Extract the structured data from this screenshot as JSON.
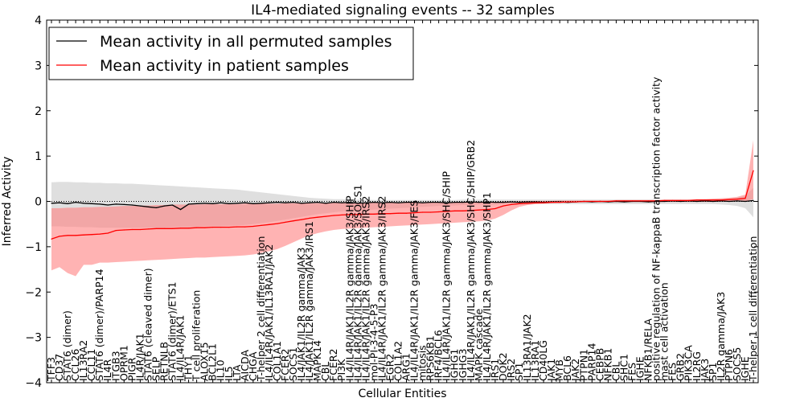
{
  "chart_data": {
    "type": "line",
    "title": "IL4-mediated signaling events -- 32 samples",
    "xlabel": "Cellular Entities",
    "ylabel": "Inferred Activity",
    "ylim": [
      -4,
      4
    ],
    "yticks": [
      -4,
      -3,
      -2,
      -1,
      0,
      1,
      2,
      3,
      4
    ],
    "grid": false,
    "legend_position": "top-left",
    "categories": [
      "TFF3",
      "CD37",
      "STAT6 (dimer)",
      "CCL26",
      "IL13RA2",
      "CCL11",
      "STAT6 (dimer)/PARP14",
      "IL4R",
      "ITGB3",
      "OPRM1",
      "PIGR",
      "IL4R/JAK1",
      "STAT6 (cleaved dimer)",
      "SELP",
      "RETNLB",
      "STAT6 (dimer)/ETS1",
      "IL4/IL4R/JAK1",
      "THY1",
      "T cell proliferation",
      "ALOX15",
      "BCL2L1",
      "IL10",
      "IL5",
      "LTA",
      "AICDA",
      "CHGA",
      "T-helper 2 cell differentiation",
      "IL4/IL4R/JAK1/IL13RA1/JAK2",
      "COL1A1",
      "FCER2",
      "SOCS1",
      "IL4/JAK1/IL2R gamma/JAK3",
      "IL4/JAK1/IL2R gamma/JAK3/IRS1",
      "MAPK14",
      "CBL",
      "FCER2",
      "PI3K",
      "IL4/IL4R/JAK1/IL2R gamma/JAK3/SHIP",
      "IL4/IL4R/JAK1/IL2R gamma/JAK3/SOCS1",
      "IL4/IL4R/JAK1/IL2R gamma/JAK3/IRS2",
      "mol-PI-3-4-5-P3",
      "IL4/IL4R/JAK1/IL2R gamma/JAK3/IRS2",
      "EGR2",
      "COL1A2",
      "ARG1",
      "IL4/IL4R/JAK1/IL2R gamma/JAK3/FES",
      "mitosis",
      "RPS6KB1",
      "IRF4/BCL6",
      "IL4/IL4R/JAK1/IL2R gamma/JAK3/SHC/SHIP",
      "IGHG1",
      "IGHG3",
      "IL4/IL4R/JAK1/IL2R gamma/JAK3/SHC/SHIP/GRB2",
      "MAPK cascade",
      "IL4/IL4R/JAK1/IL2R gamma/JAK3/SHP1",
      "IRS1",
      "DOK2",
      "IRS2",
      "SP1",
      "IL13RA1/JAK2",
      "IL13RA1",
      "CD40LG",
      "JAK1",
      "MYB",
      "BCL6",
      "JAK2",
      "PTPN1",
      "PARP14",
      "CEBPB",
      "NFKB1",
      "CBL",
      "SHC1",
      "FES",
      "IGHE",
      "NFKB1/RELA",
      "positive regulation of NF-kappaB transcription factor activity",
      "mast cell activation",
      "FES",
      "GRB2",
      "PIK3CA",
      "IL2RG",
      "JAK3",
      "SP1",
      "IL2R gamma/JAK3",
      "PTPN6",
      "SOCS5",
      "IGHE",
      "T-helper 1 cell differentiation"
    ],
    "series": [
      {
        "name": "Mean activity in all permuted samples",
        "color": "#000000",
        "values": [
          -0.04,
          -0.03,
          -0.05,
          -0.02,
          -0.04,
          -0.05,
          -0.06,
          -0.08,
          -0.06,
          -0.07,
          -0.08,
          -0.1,
          -0.12,
          -0.14,
          -0.1,
          -0.08,
          -0.18,
          -0.06,
          -0.05,
          -0.04,
          -0.05,
          -0.03,
          -0.05,
          -0.04,
          -0.03,
          -0.05,
          -0.04,
          -0.03,
          -0.02,
          -0.03,
          -0.02,
          -0.04,
          -0.03,
          -0.02,
          -0.04,
          -0.02,
          -0.03,
          -0.02,
          -0.04,
          -0.03,
          -0.02,
          -0.03,
          -0.02,
          -0.03,
          -0.02,
          -0.02,
          -0.03,
          -0.02,
          -0.02,
          -0.03,
          -0.02,
          -0.02,
          -0.01,
          -0.02,
          -0.01,
          -0.02,
          -0.02,
          -0.01,
          -0.02,
          -0.01,
          -0.01,
          -0.02,
          -0.01,
          -0.01,
          -0.02,
          -0.01,
          0,
          -0.01,
          0,
          -0.01,
          0,
          -0.01,
          0,
          0,
          -0.01,
          0,
          0,
          0.01,
          0,
          0.01,
          0,
          0.01,
          0,
          0.01,
          0,
          0.01,
          0,
          0.02
        ]
      },
      {
        "name": "Mean activity in patient samples",
        "color": "#ff0000",
        "values": [
          -0.83,
          -0.77,
          -0.75,
          -0.75,
          -0.74,
          -0.73,
          -0.72,
          -0.7,
          -0.64,
          -0.63,
          -0.62,
          -0.62,
          -0.61,
          -0.6,
          -0.6,
          -0.6,
          -0.59,
          -0.59,
          -0.58,
          -0.58,
          -0.57,
          -0.57,
          -0.57,
          -0.56,
          -0.56,
          -0.55,
          -0.53,
          -0.51,
          -0.49,
          -0.46,
          -0.43,
          -0.4,
          -0.37,
          -0.35,
          -0.33,
          -0.31,
          -0.3,
          -0.29,
          -0.29,
          -0.28,
          -0.28,
          -0.27,
          -0.27,
          -0.26,
          -0.26,
          -0.25,
          -0.24,
          -0.24,
          -0.23,
          -0.22,
          -0.21,
          -0.21,
          -0.2,
          -0.19,
          -0.18,
          -0.16,
          -0.1,
          -0.07,
          -0.05,
          -0.04,
          -0.03,
          -0.03,
          -0.02,
          -0.02,
          -0.01,
          -0.01,
          0,
          0,
          0,
          0,
          0.01,
          0.01,
          0.01,
          0.01,
          0.01,
          0.01,
          0.02,
          0.02,
          0.02,
          0.02,
          0.03,
          0.03,
          0.03,
          0.03,
          0.04,
          0.05,
          0.07,
          0.68
        ]
      }
    ],
    "bands": [
      {
        "series": "Mean activity in all permuted samples",
        "color": "#b0b0b0",
        "lower": [
          -0.55,
          -0.55,
          -0.56,
          -0.56,
          -0.57,
          -0.57,
          -0.58,
          -0.58,
          -0.58,
          -0.58,
          -0.58,
          -0.58,
          -0.58,
          -0.58,
          -0.58,
          -0.57,
          -0.57,
          -0.57,
          -0.56,
          -0.55,
          -0.55,
          -0.55,
          -0.54,
          -0.53,
          -0.52,
          -0.5,
          -0.48,
          -0.46,
          -0.43,
          -0.4,
          -0.37,
          -0.34,
          -0.31,
          -0.28,
          -0.26,
          -0.24,
          -0.22,
          -0.21,
          -0.2,
          -0.19,
          -0.18,
          -0.17,
          -0.16,
          -0.15,
          -0.14,
          -0.13,
          -0.12,
          -0.11,
          -0.1,
          -0.09,
          -0.09,
          -0.08,
          -0.08,
          -0.07,
          -0.07,
          -0.07,
          -0.06,
          -0.06,
          -0.06,
          -0.06,
          -0.06,
          -0.06,
          -0.06,
          -0.06,
          -0.06,
          -0.06,
          -0.06,
          -0.06,
          -0.06,
          -0.06,
          -0.06,
          -0.06,
          -0.06,
          -0.06,
          -0.06,
          -0.06,
          -0.06,
          -0.06,
          -0.06,
          -0.06,
          -0.06,
          -0.06,
          -0.06,
          -0.07,
          -0.08,
          -0.1,
          -0.15,
          -0.35
        ],
        "upper": [
          0.42,
          0.43,
          0.43,
          0.42,
          0.42,
          0.41,
          0.41,
          0.4,
          0.4,
          0.39,
          0.39,
          0.38,
          0.37,
          0.36,
          0.35,
          0.34,
          0.33,
          0.32,
          0.31,
          0.3,
          0.29,
          0.28,
          0.27,
          0.26,
          0.24,
          0.22,
          0.2,
          0.18,
          0.16,
          0.14,
          0.12,
          0.1,
          0.08,
          0.07,
          0.06,
          0.05,
          0.05,
          0.04,
          0.04,
          0.04,
          0.03,
          0.03,
          0.03,
          0.03,
          0.03,
          0.03,
          0.03,
          0.03,
          0.03,
          0.03,
          0.03,
          0.04,
          0.04,
          0.04,
          0.04,
          0.04,
          0.04,
          0.04,
          0.04,
          0.04,
          0.04,
          0.04,
          0.04,
          0.04,
          0.04,
          0.04,
          0.04,
          0.04,
          0.04,
          0.04,
          0.04,
          0.04,
          0.04,
          0.04,
          0.04,
          0.04,
          0.04,
          0.04,
          0.04,
          0.04,
          0.04,
          0.05,
          0.05,
          0.05,
          0.06,
          0.08,
          0.12,
          0.3
        ]
      },
      {
        "series": "Mean activity in patient samples",
        "color": "#ff8080",
        "lower": [
          -1.52,
          -1.45,
          -1.58,
          -1.65,
          -1.4,
          -1.4,
          -1.35,
          -1.35,
          -1.34,
          -1.33,
          -1.32,
          -1.31,
          -1.3,
          -1.29,
          -1.28,
          -1.27,
          -1.26,
          -1.25,
          -1.24,
          -1.24,
          -1.23,
          -1.22,
          -1.21,
          -1.2,
          -1.19,
          -1.17,
          -1.14,
          -1.1,
          -1.05,
          -0.98,
          -0.9,
          -0.82,
          -0.75,
          -0.7,
          -0.66,
          -0.63,
          -0.61,
          -0.6,
          -0.59,
          -0.58,
          -0.57,
          -0.56,
          -0.55,
          -0.54,
          -0.53,
          -0.52,
          -0.51,
          -0.5,
          -0.49,
          -0.48,
          -0.47,
          -0.46,
          -0.45,
          -0.44,
          -0.42,
          -0.38,
          -0.3,
          -0.2,
          -0.12,
          -0.08,
          -0.06,
          -0.05,
          -0.04,
          -0.03,
          -0.03,
          -0.02,
          -0.02,
          -0.02,
          -0.02,
          -0.01,
          -0.01,
          -0.01,
          -0.01,
          -0.01,
          -0.01,
          -0.01,
          -0.01,
          -0.01,
          -0.01,
          -0.01,
          -0.01,
          -0.01,
          -0.01,
          0,
          0,
          0,
          0,
          0.05
        ],
        "upper": [
          -0.15,
          -0.15,
          -0.14,
          -0.14,
          -0.13,
          -0.13,
          -0.12,
          -0.12,
          -0.11,
          -0.1,
          -0.1,
          -0.09,
          -0.09,
          -0.08,
          -0.08,
          -0.07,
          -0.07,
          -0.07,
          -0.07,
          -0.06,
          -0.06,
          -0.06,
          -0.06,
          -0.06,
          -0.05,
          -0.05,
          -0.05,
          -0.05,
          -0.05,
          -0.04,
          -0.04,
          -0.04,
          -0.04,
          -0.04,
          -0.04,
          -0.03,
          -0.03,
          -0.03,
          -0.03,
          -0.03,
          -0.03,
          -0.03,
          -0.02,
          -0.02,
          -0.02,
          -0.02,
          -0.02,
          -0.02,
          -0.02,
          -0.02,
          -0.02,
          -0.01,
          -0.01,
          -0.01,
          -0.01,
          -0.01,
          0,
          0,
          0,
          0.01,
          0.01,
          0.01,
          0.01,
          0.02,
          0.02,
          0.02,
          0.02,
          0.02,
          0.02,
          0.02,
          0.03,
          0.03,
          0.03,
          0.03,
          0.03,
          0.03,
          0.04,
          0.04,
          0.04,
          0.04,
          0.05,
          0.05,
          0.06,
          0.07,
          0.08,
          0.1,
          0.15,
          1.35
        ]
      }
    ],
    "reference_line": {
      "y": 0,
      "style": "dotted"
    }
  }
}
